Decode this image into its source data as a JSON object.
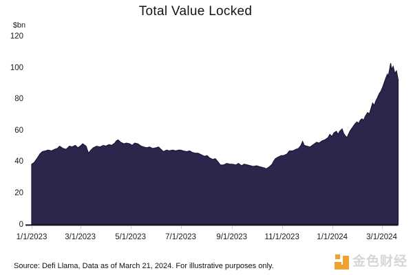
{
  "title": "Total Value Locked",
  "y_axis": {
    "unit_label": "$bn",
    "ticks": [
      120,
      100,
      80,
      60,
      40,
      20,
      0
    ]
  },
  "x_axis": {
    "ticks": [
      {
        "date": "2023-01-01",
        "label": "1/1/2023"
      },
      {
        "date": "2023-03-01",
        "label": "3/1/2023"
      },
      {
        "date": "2023-05-01",
        "label": "5/1/2023"
      },
      {
        "date": "2023-07-01",
        "label": "7/1/2023"
      },
      {
        "date": "2023-09-01",
        "label": "9/1/2023"
      },
      {
        "date": "2023-11-01",
        "label": "11/1/2023"
      },
      {
        "date": "2024-01-01",
        "label": "1/1/2024"
      },
      {
        "date": "2024-03-01",
        "label": "3/1/2024"
      }
    ]
  },
  "footer": {
    "source_text": "Source: Defi Llama, Data as of March 21, 2024. For illustrative purposes only."
  },
  "watermark": {
    "brand_text": "金色财经",
    "icon": "jinse-logo-icon",
    "icon_color": "#F0A230",
    "text_color": "#D7D6D3"
  },
  "colors": {
    "area_fill": "#2E254D",
    "area_stroke": "#1C1535",
    "axis_line": "#14121A",
    "tick_mark": "#C9C9C9",
    "text": "#1A1A1A",
    "background": "#FFFFFF"
  },
  "chart_data": {
    "type": "area",
    "title": "Total Value Locked",
    "xlabel": "",
    "ylabel": "$bn",
    "ylim": [
      0,
      120
    ],
    "x_range": [
      "2023-01-01",
      "2024-03-21"
    ],
    "grid": false,
    "legend": false,
    "series": [
      {
        "name": "Total Value Locked ($bn)",
        "points": [
          [
            "2023-01-01",
            38.5
          ],
          [
            "2023-01-04",
            39.5
          ],
          [
            "2023-01-08",
            42.5
          ],
          [
            "2023-01-11",
            45
          ],
          [
            "2023-01-14",
            46.5
          ],
          [
            "2023-01-18",
            47
          ],
          [
            "2023-01-21",
            47.5
          ],
          [
            "2023-01-25",
            47
          ],
          [
            "2023-01-29",
            48
          ],
          [
            "2023-02-01",
            48.5
          ],
          [
            "2023-02-04",
            50
          ],
          [
            "2023-02-08",
            48.5
          ],
          [
            "2023-02-12",
            48
          ],
          [
            "2023-02-16",
            50
          ],
          [
            "2023-02-19",
            49.5
          ],
          [
            "2023-02-23",
            50.5
          ],
          [
            "2023-02-26",
            49
          ],
          [
            "2023-03-01",
            50
          ],
          [
            "2023-03-04",
            51.5
          ],
          [
            "2023-03-08",
            50
          ],
          [
            "2023-03-11",
            45.5
          ],
          [
            "2023-03-14",
            47.5
          ],
          [
            "2023-03-17",
            49
          ],
          [
            "2023-03-21",
            50
          ],
          [
            "2023-03-25",
            49.5
          ],
          [
            "2023-03-29",
            50.5
          ],
          [
            "2023-04-01",
            50
          ],
          [
            "2023-04-05",
            51
          ],
          [
            "2023-04-08",
            50.5
          ],
          [
            "2023-04-12",
            52
          ],
          [
            "2023-04-14",
            53.5
          ],
          [
            "2023-04-16",
            54
          ],
          [
            "2023-04-19",
            52.5
          ],
          [
            "2023-04-23",
            51.5
          ],
          [
            "2023-04-26",
            52
          ],
          [
            "2023-04-30",
            51.5
          ],
          [
            "2023-05-03",
            50.5
          ],
          [
            "2023-05-06",
            52
          ],
          [
            "2023-05-10",
            51.5
          ],
          [
            "2023-05-14",
            50
          ],
          [
            "2023-05-17",
            49.5
          ],
          [
            "2023-05-21",
            49
          ],
          [
            "2023-05-24",
            49.5
          ],
          [
            "2023-05-28",
            48.5
          ],
          [
            "2023-06-01",
            49
          ],
          [
            "2023-06-04",
            49.5
          ],
          [
            "2023-06-07",
            48
          ],
          [
            "2023-06-10",
            46.5
          ],
          [
            "2023-06-14",
            47.5
          ],
          [
            "2023-06-17",
            47
          ],
          [
            "2023-06-21",
            47.5
          ],
          [
            "2023-06-25",
            47
          ],
          [
            "2023-06-28",
            47.5
          ],
          [
            "2023-07-01",
            47.5
          ],
          [
            "2023-07-04",
            47
          ],
          [
            "2023-07-08",
            46.5
          ],
          [
            "2023-07-12",
            47
          ],
          [
            "2023-07-15",
            46
          ],
          [
            "2023-07-19",
            45.5
          ],
          [
            "2023-07-22",
            45.5
          ],
          [
            "2023-07-26",
            44.5
          ],
          [
            "2023-07-30",
            43.5
          ],
          [
            "2023-08-02",
            44
          ],
          [
            "2023-08-05",
            42.5
          ],
          [
            "2023-08-09",
            41.5
          ],
          [
            "2023-08-12",
            42
          ],
          [
            "2023-08-16",
            39.5
          ],
          [
            "2023-08-18",
            38
          ],
          [
            "2023-08-22",
            38
          ],
          [
            "2023-08-26",
            39
          ],
          [
            "2023-08-30",
            38.5
          ],
          [
            "2023-09-02",
            38.5
          ],
          [
            "2023-09-06",
            38
          ],
          [
            "2023-09-09",
            39
          ],
          [
            "2023-09-13",
            37.5
          ],
          [
            "2023-09-16",
            38.5
          ],
          [
            "2023-09-20",
            38
          ],
          [
            "2023-09-24",
            37.5
          ],
          [
            "2023-09-27",
            37
          ],
          [
            "2023-10-01",
            37.5
          ],
          [
            "2023-10-04",
            37
          ],
          [
            "2023-10-08",
            36.5
          ],
          [
            "2023-10-11",
            36
          ],
          [
            "2023-10-13",
            35.5
          ],
          [
            "2023-10-17",
            37
          ],
          [
            "2023-10-20",
            38.5
          ],
          [
            "2023-10-22",
            40.5
          ],
          [
            "2023-10-24",
            42
          ],
          [
            "2023-10-27",
            43
          ],
          [
            "2023-10-31",
            44
          ],
          [
            "2023-11-03",
            44
          ],
          [
            "2023-11-07",
            45
          ],
          [
            "2023-11-10",
            47
          ],
          [
            "2023-11-14",
            47
          ],
          [
            "2023-11-18",
            48
          ],
          [
            "2023-11-21",
            48.5
          ],
          [
            "2023-11-24",
            50.5
          ],
          [
            "2023-11-26",
            53
          ],
          [
            "2023-11-28",
            50.5
          ],
          [
            "2023-12-01",
            50
          ],
          [
            "2023-12-05",
            49.5
          ],
          [
            "2023-12-09",
            51
          ],
          [
            "2023-12-13",
            52.5
          ],
          [
            "2023-12-16",
            52
          ],
          [
            "2023-12-20",
            53.5
          ],
          [
            "2023-12-23",
            54
          ],
          [
            "2023-12-27",
            55.5
          ],
          [
            "2023-12-29",
            57.5
          ],
          [
            "2023-12-31",
            56.5
          ],
          [
            "2024-01-01",
            56.5
          ],
          [
            "2024-01-03",
            58.5
          ],
          [
            "2024-01-06",
            59.5
          ],
          [
            "2024-01-08",
            57.5
          ],
          [
            "2024-01-10",
            59.5
          ],
          [
            "2024-01-13",
            61
          ],
          [
            "2024-01-15",
            58
          ],
          [
            "2024-01-17",
            56.5
          ],
          [
            "2024-01-19",
            55.5
          ],
          [
            "2024-01-21",
            58
          ],
          [
            "2024-01-23",
            60
          ],
          [
            "2024-01-25",
            61.5
          ],
          [
            "2024-01-27",
            63
          ],
          [
            "2024-01-29",
            64.5
          ],
          [
            "2024-01-31",
            65.5
          ],
          [
            "2024-02-02",
            64.5
          ],
          [
            "2024-02-04",
            66.5
          ],
          [
            "2024-02-06",
            67.5
          ],
          [
            "2024-02-08",
            66.5
          ],
          [
            "2024-02-10",
            69
          ],
          [
            "2024-02-13",
            71.5
          ],
          [
            "2024-02-15",
            70.5
          ],
          [
            "2024-02-17",
            74
          ],
          [
            "2024-02-19",
            77.5
          ],
          [
            "2024-02-21",
            76
          ],
          [
            "2024-02-23",
            79
          ],
          [
            "2024-02-25",
            81
          ],
          [
            "2024-02-27",
            83.5
          ],
          [
            "2024-02-29",
            85
          ],
          [
            "2024-03-02",
            87.5
          ],
          [
            "2024-03-04",
            90.5
          ],
          [
            "2024-03-06",
            93.5
          ],
          [
            "2024-03-08",
            96
          ],
          [
            "2024-03-09",
            94.5
          ],
          [
            "2024-03-11",
            100
          ],
          [
            "2024-03-12",
            103
          ],
          [
            "2024-03-13",
            99
          ],
          [
            "2024-03-15",
            101
          ],
          [
            "2024-03-17",
            96.5
          ],
          [
            "2024-03-19",
            98
          ],
          [
            "2024-03-21",
            92.5
          ]
        ]
      }
    ]
  }
}
